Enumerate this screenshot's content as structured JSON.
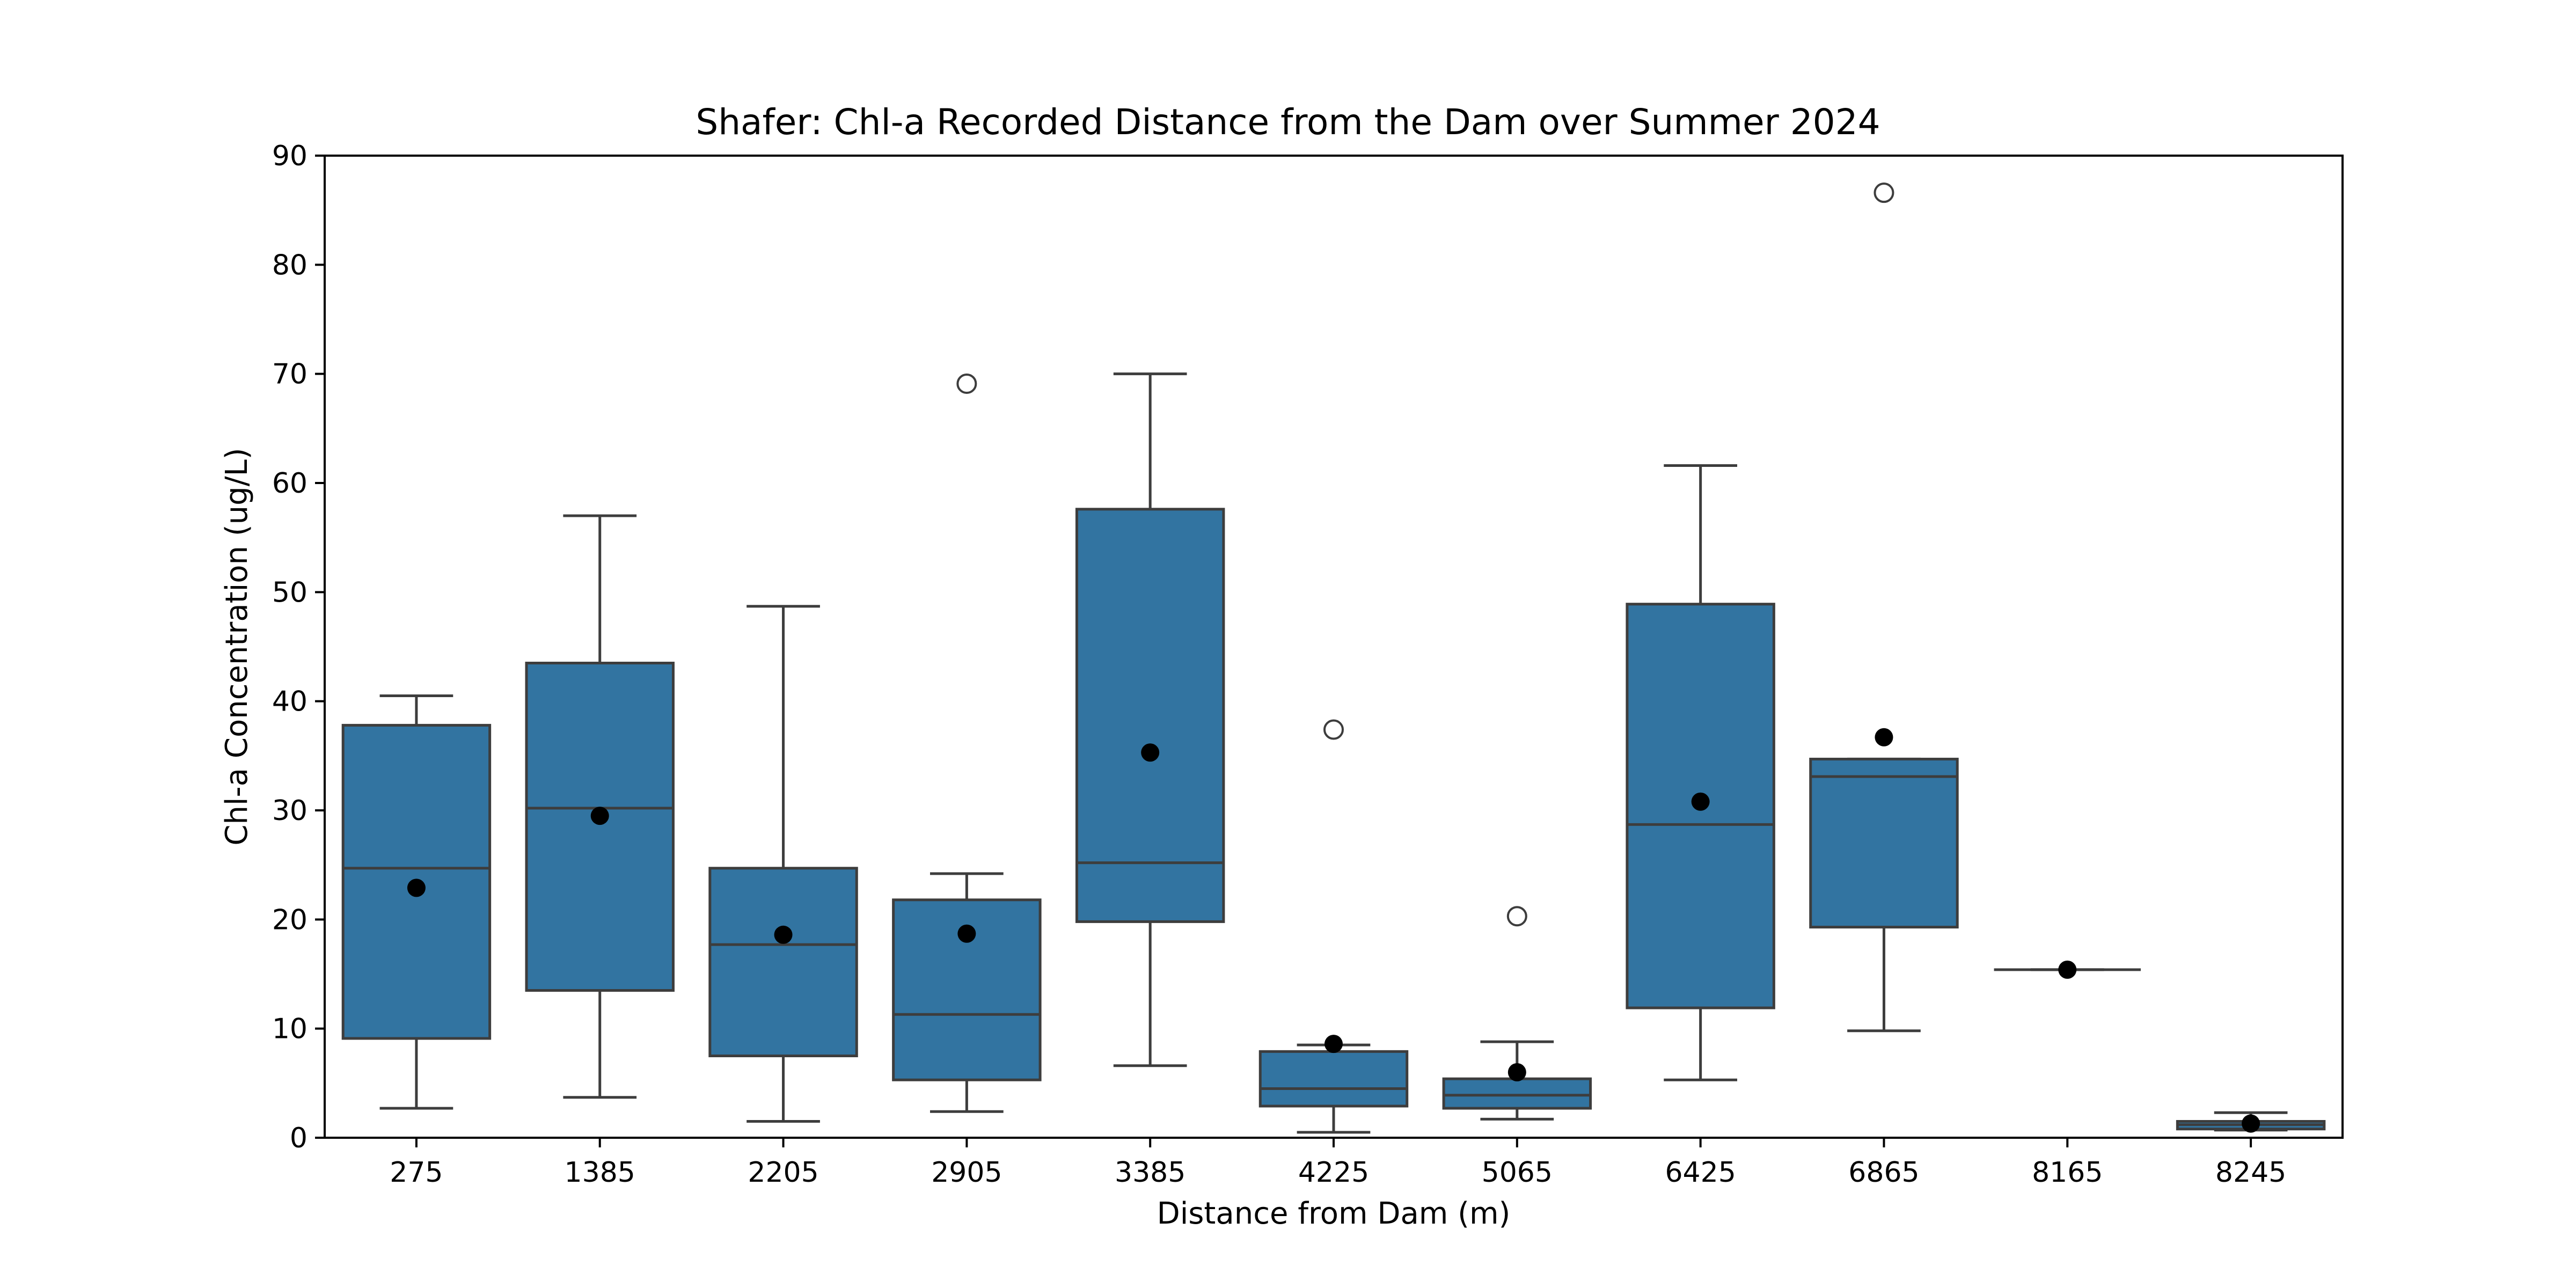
{
  "chart_data": {
    "type": "box",
    "title": "Shafer: Chl-a Recorded Distance from the Dam over Summer 2024",
    "xlabel": "Distance from Dam (m)",
    "ylabel": "Chl-a Concentration (ug/L)",
    "ylim": [
      0,
      90
    ],
    "yticks": [
      0,
      10,
      20,
      30,
      40,
      50,
      60,
      70,
      80,
      90
    ],
    "grid": false,
    "box_color": "#3274a1",
    "line_color": "#3d3d3d",
    "mean_color": "#000000",
    "categories": [
      "275",
      "1385",
      "2205",
      "2905",
      "3385",
      "4225",
      "5065",
      "6425",
      "6865",
      "8165",
      "8245"
    ],
    "boxes": [
      {
        "category": "275",
        "whisker_low": 2.7,
        "q1": 9.1,
        "median": 24.7,
        "q3": 37.8,
        "whisker_high": 40.5,
        "mean": 22.9,
        "outliers": []
      },
      {
        "category": "1385",
        "whisker_low": 3.7,
        "q1": 13.5,
        "median": 30.2,
        "q3": 43.5,
        "whisker_high": 57.0,
        "mean": 29.5,
        "outliers": []
      },
      {
        "category": "2205",
        "whisker_low": 1.5,
        "q1": 7.5,
        "median": 17.7,
        "q3": 24.7,
        "whisker_high": 48.7,
        "mean": 18.6,
        "outliers": []
      },
      {
        "category": "2905",
        "whisker_low": 2.4,
        "q1": 5.3,
        "median": 11.3,
        "q3": 21.8,
        "whisker_high": 24.2,
        "mean": 18.7,
        "outliers": [
          69.1
        ]
      },
      {
        "category": "3385",
        "whisker_low": 6.6,
        "q1": 19.8,
        "median": 25.2,
        "q3": 57.6,
        "whisker_high": 70.0,
        "mean": 35.3,
        "outliers": []
      },
      {
        "category": "4225",
        "whisker_low": 0.5,
        "q1": 2.9,
        "median": 4.5,
        "q3": 7.9,
        "whisker_high": 8.5,
        "mean": 8.6,
        "outliers": [
          37.4
        ]
      },
      {
        "category": "5065",
        "whisker_low": 1.7,
        "q1": 2.7,
        "median": 3.9,
        "q3": 5.4,
        "whisker_high": 8.8,
        "mean": 6.0,
        "outliers": [
          20.3
        ]
      },
      {
        "category": "6425",
        "whisker_low": 5.3,
        "q1": 11.9,
        "median": 28.7,
        "q3": 48.9,
        "whisker_high": 61.6,
        "mean": 30.8,
        "outliers": []
      },
      {
        "category": "6865",
        "whisker_low": 9.8,
        "q1": 19.3,
        "median": 33.1,
        "q3": 34.7,
        "whisker_high": 34.7,
        "mean": 36.7,
        "outliers": [
          86.6
        ]
      },
      {
        "category": "8165",
        "whisker_low": 15.4,
        "q1": 15.4,
        "median": 15.4,
        "q3": 15.4,
        "whisker_high": 15.4,
        "mean": 15.4,
        "outliers": []
      },
      {
        "category": "8245",
        "whisker_low": 0.7,
        "q1": 0.8,
        "median": 1.2,
        "q3": 1.5,
        "whisker_high": 2.3,
        "mean": 1.3,
        "outliers": []
      }
    ]
  }
}
